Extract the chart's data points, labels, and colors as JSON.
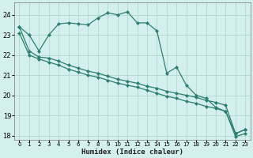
{
  "xlabel": "Humidex (Indice chaleur)",
  "bg_color": "#d4f0ee",
  "line_color": "#2e7d6e",
  "grid_color": "#b0d8d0",
  "xlim": [
    -0.5,
    23.5
  ],
  "ylim": [
    17.8,
    24.6
  ],
  "yticks": [
    18,
    19,
    20,
    21,
    22,
    23,
    24
  ],
  "xticks": [
    0,
    1,
    2,
    3,
    4,
    5,
    6,
    7,
    8,
    9,
    10,
    11,
    12,
    13,
    14,
    15,
    16,
    17,
    18,
    19,
    20,
    21,
    22,
    23
  ],
  "curve1_x": [
    0,
    1,
    2,
    3,
    4,
    5,
    6,
    7,
    8,
    9,
    10,
    11,
    12,
    13,
    14,
    15,
    16,
    17,
    18,
    19,
    20,
    21,
    22,
    23
  ],
  "curve1_y": [
    23.4,
    23.0,
    22.2,
    23.0,
    23.55,
    23.6,
    23.55,
    23.5,
    23.85,
    24.1,
    24.0,
    24.15,
    23.6,
    23.6,
    23.2,
    21.1,
    21.4,
    20.5,
    20.0,
    19.85,
    19.4,
    19.2,
    18.1,
    18.3
  ],
  "curve2_x": [
    0,
    1,
    2,
    3,
    4,
    5,
    6,
    7,
    8,
    9,
    10,
    11,
    12,
    13,
    14,
    15,
    16,
    17,
    18,
    19,
    20,
    21,
    22,
    23
  ],
  "curve2_y": [
    23.4,
    22.2,
    21.9,
    21.85,
    21.7,
    21.5,
    21.35,
    21.2,
    21.1,
    20.95,
    20.8,
    20.7,
    20.6,
    20.45,
    20.35,
    20.2,
    20.1,
    20.0,
    19.9,
    19.75,
    19.65,
    19.5,
    18.1,
    18.3
  ],
  "curve3_x": [
    0,
    1,
    2,
    3,
    4,
    5,
    6,
    7,
    8,
    9,
    10,
    11,
    12,
    13,
    14,
    15,
    16,
    17,
    18,
    19,
    20,
    21,
    22,
    23
  ],
  "curve3_y": [
    23.1,
    22.0,
    21.8,
    21.65,
    21.5,
    21.3,
    21.15,
    21.0,
    20.9,
    20.75,
    20.6,
    20.5,
    20.4,
    20.25,
    20.1,
    19.95,
    19.85,
    19.7,
    19.6,
    19.45,
    19.35,
    19.2,
    17.95,
    18.1
  ]
}
